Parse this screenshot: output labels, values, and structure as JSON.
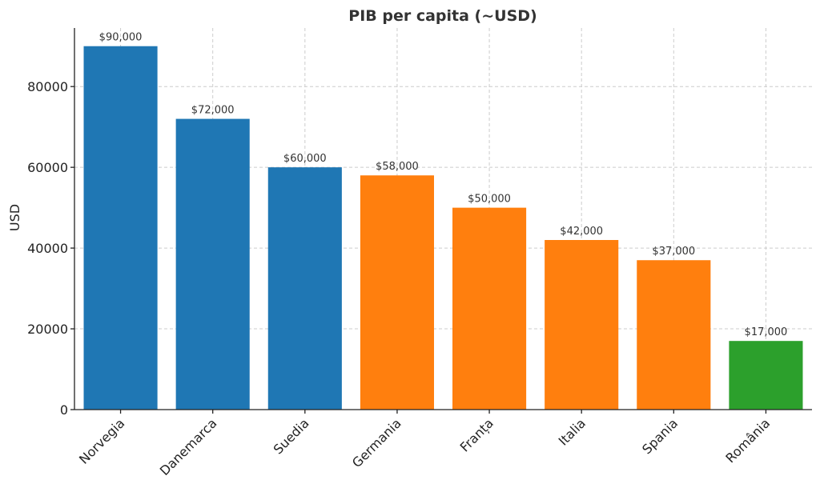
{
  "chart_data": {
    "type": "bar",
    "title": "PIB per capita (~USD)",
    "xlabel": "",
    "ylabel": "USD",
    "ylim": [
      0,
      94500
    ],
    "yticks": [
      0,
      20000,
      40000,
      60000,
      80000
    ],
    "ytick_labels": [
      "0",
      "20000",
      "40000",
      "60000",
      "80000"
    ],
    "grid": true,
    "categories": [
      "Norvegia",
      "Danemarca",
      "Suedia",
      "Germania",
      "Franța",
      "Italia",
      "Spania",
      "România"
    ],
    "values": [
      90000,
      72000,
      60000,
      58000,
      50000,
      42000,
      37000,
      17000
    ],
    "value_labels": [
      "$90,000",
      "$72,000",
      "$60,000",
      "$58,000",
      "$50,000",
      "$42,000",
      "$37,000",
      "$17,000"
    ],
    "bar_colors": [
      "#1f77b4",
      "#1f77b4",
      "#1f77b4",
      "#ff7f0e",
      "#ff7f0e",
      "#ff7f0e",
      "#ff7f0e",
      "#2ca02c"
    ]
  }
}
